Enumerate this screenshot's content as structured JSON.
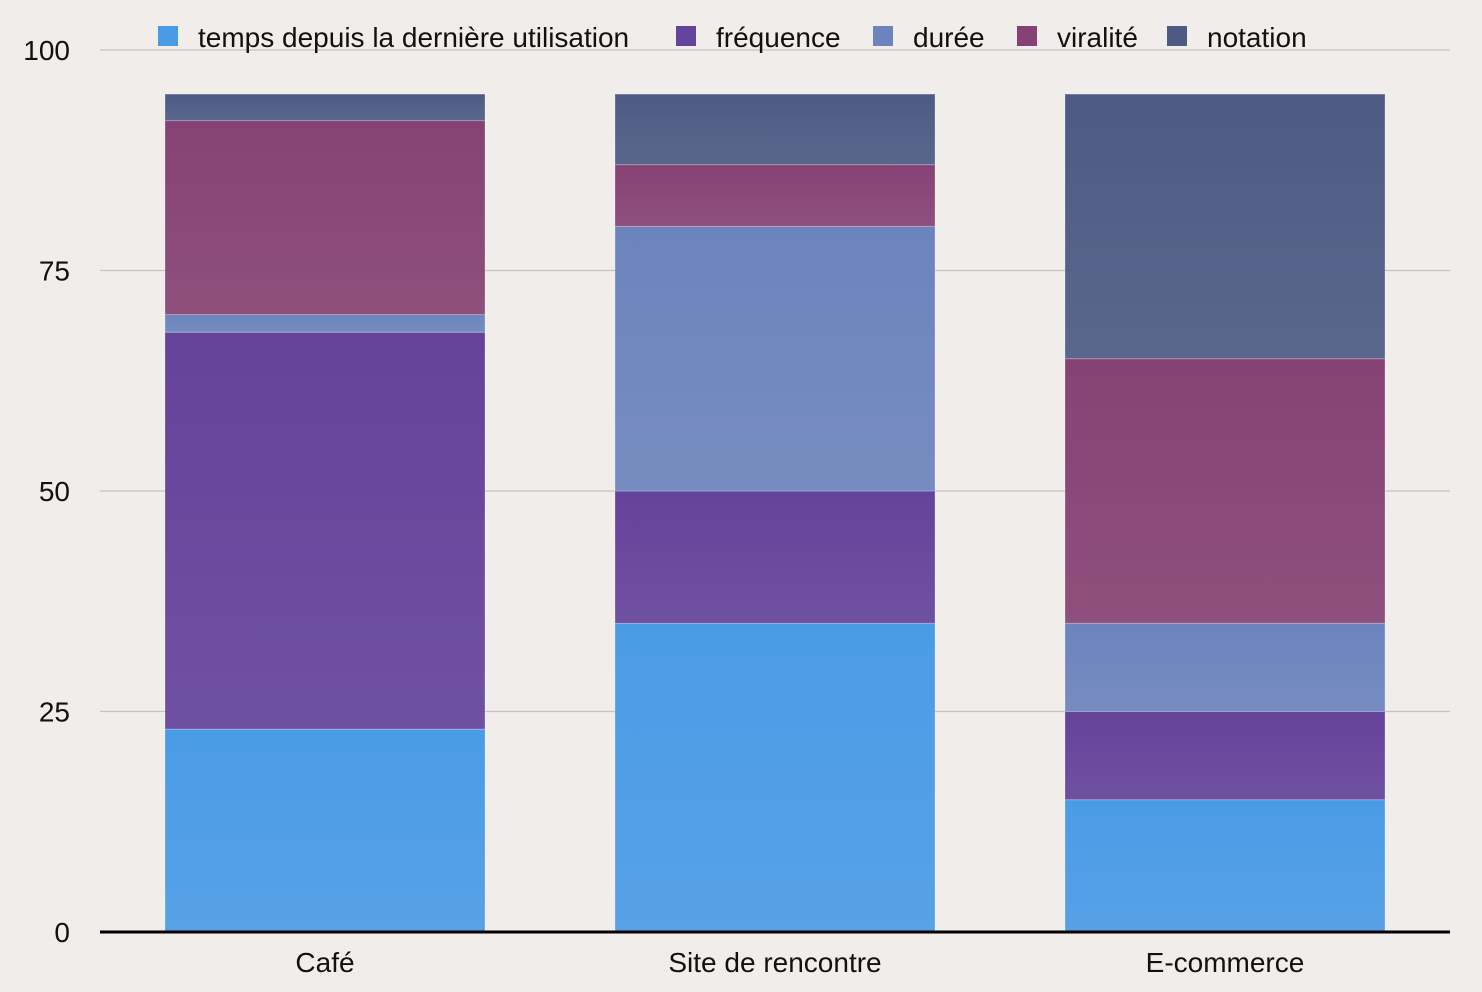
{
  "chart_data": {
    "type": "bar",
    "stacked": true,
    "title": "",
    "xlabel": "",
    "ylabel": "",
    "ylim": [
      0,
      100
    ],
    "yticks": [
      0,
      25,
      50,
      75,
      100
    ],
    "grid": true,
    "legend_position": "top",
    "categories": [
      "Café",
      "Site de rencontre",
      "E-commerce"
    ],
    "series": [
      {
        "name": "temps depuis la dernière utilisation",
        "color": "#4a9be6",
        "values": [
          23,
          35,
          15
        ]
      },
      {
        "name": "fréquence",
        "color": "#64439a",
        "values": [
          45,
          15,
          10
        ]
      },
      {
        "name": "durée",
        "color": "#6c84bd",
        "values": [
          2,
          30,
          10
        ]
      },
      {
        "name": "viralité",
        "color": "#864274",
        "values": [
          22,
          7,
          30
        ]
      },
      {
        "name": "notation",
        "color": "#4d5b84",
        "values": [
          3,
          8,
          30
        ]
      }
    ]
  }
}
